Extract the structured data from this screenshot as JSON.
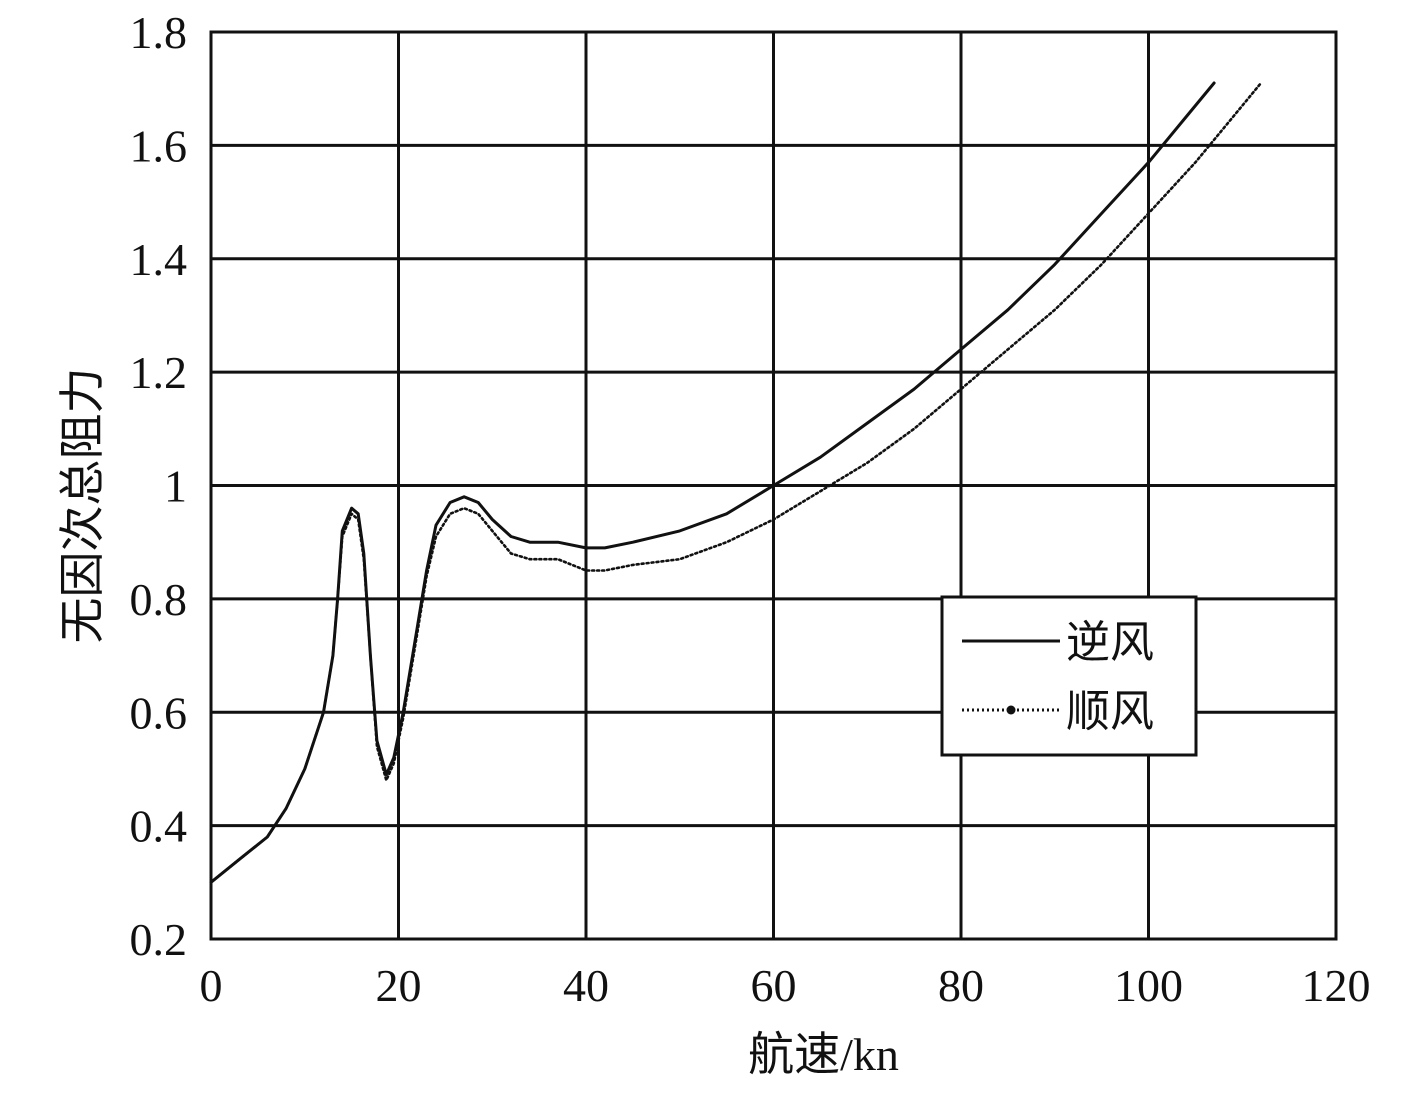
{
  "chart_data": {
    "type": "line",
    "title": "",
    "xlabel": "航速/kn",
    "ylabel": "无因次总阻力",
    "xlim": [
      0,
      120
    ],
    "ylim": [
      0.2,
      1.8
    ],
    "x_ticks": [
      "0",
      "20",
      "40",
      "60",
      "80",
      "100",
      "120"
    ],
    "y_ticks": [
      "0.2",
      "0.4",
      "0.6",
      "0.8",
      "1",
      "1.2",
      "1.4",
      "1.6",
      "1.8"
    ],
    "grid": true,
    "legend_position": "right-middle",
    "series": [
      {
        "name": "逆风",
        "style": "solid",
        "color": "#111111",
        "points": [
          [
            0,
            0.3
          ],
          [
            3,
            0.34
          ],
          [
            6,
            0.38
          ],
          [
            8,
            0.43
          ],
          [
            10,
            0.5
          ],
          [
            12,
            0.6
          ],
          [
            13,
            0.7
          ],
          [
            13.5,
            0.8
          ],
          [
            14,
            0.92
          ],
          [
            15,
            0.96
          ],
          [
            15.7,
            0.95
          ],
          [
            16.3,
            0.88
          ],
          [
            17,
            0.7
          ],
          [
            17.7,
            0.55
          ],
          [
            18.7,
            0.49
          ],
          [
            19.5,
            0.52
          ],
          [
            20.5,
            0.6
          ],
          [
            22,
            0.75
          ],
          [
            23,
            0.85
          ],
          [
            24,
            0.93
          ],
          [
            25.5,
            0.97
          ],
          [
            27,
            0.98
          ],
          [
            28.5,
            0.97
          ],
          [
            30,
            0.94
          ],
          [
            32,
            0.91
          ],
          [
            34,
            0.9
          ],
          [
            37,
            0.9
          ],
          [
            40,
            0.89
          ],
          [
            42,
            0.89
          ],
          [
            45,
            0.9
          ],
          [
            50,
            0.92
          ],
          [
            55,
            0.95
          ],
          [
            60,
            1.0
          ],
          [
            65,
            1.05
          ],
          [
            70,
            1.11
          ],
          [
            75,
            1.17
          ],
          [
            80,
            1.24
          ],
          [
            85,
            1.31
          ],
          [
            90,
            1.39
          ],
          [
            95,
            1.48
          ],
          [
            100,
            1.57
          ],
          [
            104,
            1.65
          ],
          [
            107,
            1.71
          ]
        ]
      },
      {
        "name": "顺风",
        "style": "dotted",
        "color": "#111111",
        "points": [
          [
            0,
            0.3
          ],
          [
            3,
            0.34
          ],
          [
            6,
            0.38
          ],
          [
            8,
            0.43
          ],
          [
            10,
            0.5
          ],
          [
            12,
            0.6
          ],
          [
            13,
            0.7
          ],
          [
            13.5,
            0.8
          ],
          [
            14,
            0.91
          ],
          [
            15,
            0.95
          ],
          [
            15.7,
            0.94
          ],
          [
            16.3,
            0.87
          ],
          [
            17,
            0.7
          ],
          [
            17.7,
            0.54
          ],
          [
            18.7,
            0.48
          ],
          [
            19.5,
            0.51
          ],
          [
            20.5,
            0.59
          ],
          [
            22,
            0.74
          ],
          [
            23,
            0.84
          ],
          [
            24,
            0.91
          ],
          [
            25.5,
            0.95
          ],
          [
            27,
            0.96
          ],
          [
            28.5,
            0.95
          ],
          [
            30,
            0.92
          ],
          [
            32,
            0.88
          ],
          [
            34,
            0.87
          ],
          [
            37,
            0.87
          ],
          [
            40,
            0.85
          ],
          [
            42,
            0.85
          ],
          [
            45,
            0.86
          ],
          [
            50,
            0.87
          ],
          [
            55,
            0.9
          ],
          [
            60,
            0.94
          ],
          [
            65,
            0.99
          ],
          [
            70,
            1.04
          ],
          [
            75,
            1.1
          ],
          [
            80,
            1.17
          ],
          [
            85,
            1.24
          ],
          [
            90,
            1.31
          ],
          [
            95,
            1.39
          ],
          [
            100,
            1.48
          ],
          [
            105,
            1.57
          ],
          [
            108,
            1.63
          ],
          [
            112,
            1.71
          ]
        ]
      }
    ]
  }
}
